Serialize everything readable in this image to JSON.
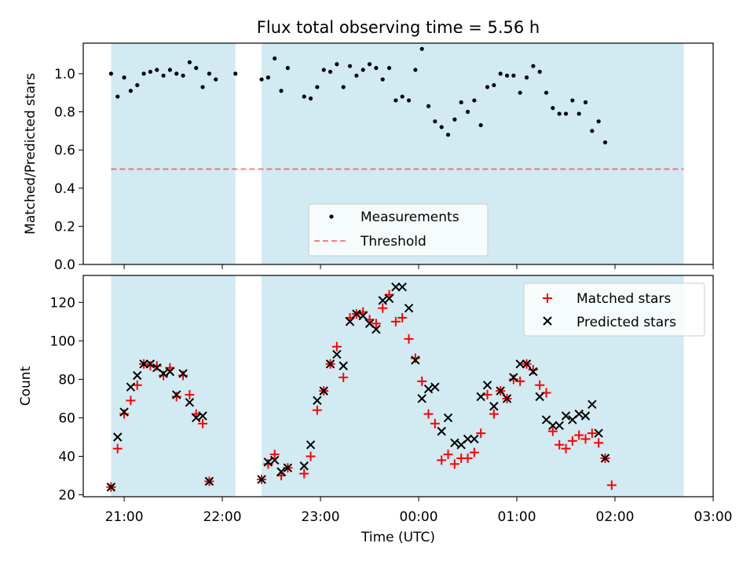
{
  "title": "Flux total observing time = 5.56 h",
  "colors": {
    "shade": "#add8e6",
    "threshold": "#ff0000",
    "matched": "#ff0000",
    "predicted": "#000000",
    "measure": "#000000"
  },
  "chart_data": [
    {
      "type": "scatter",
      "ylabel": "Matched/Predicted stars",
      "ylim": [
        0,
        1.16
      ],
      "yticks": [
        0.0,
        0.2,
        0.4,
        0.6,
        0.8,
        1.0
      ],
      "ytick_labels": [
        "0.0",
        "0.2",
        "0.4",
        "0.6",
        "0.8",
        "1.0"
      ],
      "xlim": [
        "20:35",
        "03:00"
      ],
      "shaded_spans": [
        [
          "20:52",
          "22:08"
        ],
        [
          "22:24",
          "02:42"
        ]
      ],
      "threshold": 0.5,
      "legend": {
        "position": "lower center",
        "entries": [
          "Measurements",
          "Threshold"
        ]
      },
      "series": [
        {
          "name": "Measurements",
          "points": [
            [
              "20:52",
              1.0
            ],
            [
              "20:56",
              0.88
            ],
            [
              "21:00",
              0.98
            ],
            [
              "21:04",
              0.91
            ],
            [
              "21:08",
              0.94
            ],
            [
              "21:12",
              1.0
            ],
            [
              "21:16",
              1.01
            ],
            [
              "21:20",
              1.02
            ],
            [
              "21:24",
              0.99
            ],
            [
              "21:28",
              1.02
            ],
            [
              "21:32",
              1.0
            ],
            [
              "21:36",
              0.99
            ],
            [
              "21:40",
              1.06
            ],
            [
              "21:44",
              1.03
            ],
            [
              "21:48",
              0.93
            ],
            [
              "21:52",
              1.0
            ],
            [
              "21:56",
              0.97
            ],
            [
              "22:08",
              1.0
            ],
            [
              "22:24",
              0.97
            ],
            [
              "22:28",
              0.98
            ],
            [
              "22:32",
              1.08
            ],
            [
              "22:36",
              0.91
            ],
            [
              "22:40",
              1.03
            ],
            [
              "22:50",
              0.88
            ],
            [
              "22:54",
              0.87
            ],
            [
              "22:58",
              0.93
            ],
            [
              "23:02",
              1.02
            ],
            [
              "23:06",
              1.01
            ],
            [
              "23:10",
              1.05
            ],
            [
              "23:14",
              0.93
            ],
            [
              "23:18",
              1.04
            ],
            [
              "23:22",
              0.99
            ],
            [
              "23:26",
              1.02
            ],
            [
              "23:30",
              1.05
            ],
            [
              "23:34",
              1.03
            ],
            [
              "23:38",
              0.97
            ],
            [
              "23:42",
              1.03
            ],
            [
              "23:46",
              0.86
            ],
            [
              "23:50",
              0.88
            ],
            [
              "23:54",
              0.86
            ],
            [
              "23:58",
              1.02
            ],
            [
              "00:02",
              1.13
            ],
            [
              "00:06",
              0.83
            ],
            [
              "00:10",
              0.75
            ],
            [
              "00:14",
              0.72
            ],
            [
              "00:18",
              0.68
            ],
            [
              "00:22",
              0.76
            ],
            [
              "00:26",
              0.85
            ],
            [
              "00:30",
              0.8
            ],
            [
              "00:34",
              0.86
            ],
            [
              "00:38",
              0.73
            ],
            [
              "00:42",
              0.93
            ],
            [
              "00:46",
              0.94
            ],
            [
              "00:50",
              1.0
            ],
            [
              "00:54",
              0.99
            ],
            [
              "00:58",
              0.99
            ],
            [
              "01:02",
              0.9
            ],
            [
              "01:06",
              0.98
            ],
            [
              "01:10",
              1.04
            ],
            [
              "01:14",
              1.01
            ],
            [
              "01:18",
              0.9
            ],
            [
              "01:22",
              0.82
            ],
            [
              "01:26",
              0.79
            ],
            [
              "01:30",
              0.79
            ],
            [
              "01:34",
              0.86
            ],
            [
              "01:38",
              0.79
            ],
            [
              "01:42",
              0.85
            ],
            [
              "01:46",
              0.7
            ],
            [
              "01:50",
              0.75
            ],
            [
              "01:54",
              0.64
            ]
          ]
        }
      ]
    },
    {
      "type": "scatter",
      "xlabel": "Time (UTC)",
      "ylabel": "Count",
      "ylim": [
        19,
        134
      ],
      "yticks": [
        20,
        40,
        60,
        80,
        100,
        120
      ],
      "ytick_labels": [
        "20",
        "40",
        "60",
        "80",
        "100",
        "120"
      ],
      "xlim": [
        "20:35",
        "03:00"
      ],
      "xtick_labels": [
        "21:00",
        "22:00",
        "23:00",
        "00:00",
        "01:00",
        "02:00",
        "03:00"
      ],
      "shaded_spans": [
        [
          "20:52",
          "22:08"
        ],
        [
          "22:24",
          "02:42"
        ]
      ],
      "legend": {
        "position": "top-right",
        "entries": [
          "Matched stars",
          "Predicted stars"
        ]
      },
      "series": [
        {
          "name": "Matched stars",
          "points": [
            [
              "20:52",
              24
            ],
            [
              "20:56",
              44
            ],
            [
              "21:00",
              62
            ],
            [
              "21:04",
              69
            ],
            [
              "21:08",
              77
            ],
            [
              "21:12",
              88
            ],
            [
              "21:16",
              87
            ],
            [
              "21:20",
              87
            ],
            [
              "21:24",
              82
            ],
            [
              "21:28",
              86
            ],
            [
              "21:32",
              71
            ],
            [
              "21:36",
              82
            ],
            [
              "21:40",
              72
            ],
            [
              "21:44",
              62
            ],
            [
              "21:48",
              57
            ],
            [
              "21:52",
              27
            ],
            [
              "22:24",
              28
            ],
            [
              "22:28",
              36
            ],
            [
              "22:32",
              41
            ],
            [
              "22:36",
              30
            ],
            [
              "22:40",
              34
            ],
            [
              "22:50",
              31
            ],
            [
              "22:54",
              40
            ],
            [
              "22:58",
              64
            ],
            [
              "23:02",
              74
            ],
            [
              "23:06",
              88
            ],
            [
              "23:10",
              97
            ],
            [
              "23:14",
              81
            ],
            [
              "23:18",
              112
            ],
            [
              "23:22",
              114
            ],
            [
              "23:26",
              115
            ],
            [
              "23:30",
              111
            ],
            [
              "23:34",
              109
            ],
            [
              "23:38",
              117
            ],
            [
              "23:42",
              124
            ],
            [
              "23:46",
              110
            ],
            [
              "23:50",
              112
            ],
            [
              "23:54",
              101
            ],
            [
              "23:58",
              91
            ],
            [
              "00:02",
              79
            ],
            [
              "00:06",
              62
            ],
            [
              "00:10",
              57
            ],
            [
              "00:14",
              38
            ],
            [
              "00:18",
              41
            ],
            [
              "00:22",
              36
            ],
            [
              "00:26",
              39
            ],
            [
              "00:30",
              39
            ],
            [
              "00:34",
              42
            ],
            [
              "00:38",
              52
            ],
            [
              "00:42",
              72
            ],
            [
              "00:46",
              62
            ],
            [
              "00:50",
              74
            ],
            [
              "00:54",
              70
            ],
            [
              "00:58",
              80
            ],
            [
              "01:02",
              79
            ],
            [
              "01:06",
              88
            ],
            [
              "01:10",
              85
            ],
            [
              "01:14",
              77
            ],
            [
              "01:18",
              73
            ],
            [
              "01:22",
              53
            ],
            [
              "01:26",
              46
            ],
            [
              "01:30",
              44
            ],
            [
              "01:34",
              48
            ],
            [
              "01:38",
              51
            ],
            [
              "01:42",
              49
            ],
            [
              "01:46",
              52
            ],
            [
              "01:50",
              47
            ],
            [
              "01:54",
              39
            ],
            [
              "01:58",
              25
            ]
          ]
        },
        {
          "name": "Predicted stars",
          "points": [
            [
              "20:52",
              24
            ],
            [
              "20:56",
              50
            ],
            [
              "21:00",
              63
            ],
            [
              "21:04",
              76
            ],
            [
              "21:08",
              82
            ],
            [
              "21:12",
              88
            ],
            [
              "21:16",
              88
            ],
            [
              "21:20",
              86
            ],
            [
              "21:24",
              83
            ],
            [
              "21:28",
              84
            ],
            [
              "21:32",
              72
            ],
            [
              "21:36",
              83
            ],
            [
              "21:40",
              68
            ],
            [
              "21:44",
              60
            ],
            [
              "21:48",
              61
            ],
            [
              "21:52",
              27
            ],
            [
              "22:24",
              28
            ],
            [
              "22:28",
              37
            ],
            [
              "22:32",
              38
            ],
            [
              "22:36",
              32
            ],
            [
              "22:40",
              34
            ],
            [
              "22:50",
              35
            ],
            [
              "22:54",
              46
            ],
            [
              "22:58",
              69
            ],
            [
              "23:02",
              74
            ],
            [
              "23:06",
              88
            ],
            [
              "23:10",
              93
            ],
            [
              "23:14",
              87
            ],
            [
              "23:18",
              110
            ],
            [
              "23:22",
              114
            ],
            [
              "23:26",
              113
            ],
            [
              "23:30",
              109
            ],
            [
              "23:34",
              106
            ],
            [
              "23:38",
              121
            ],
            [
              "23:42",
              122
            ],
            [
              "23:46",
              128
            ],
            [
              "23:50",
              128
            ],
            [
              "23:54",
              117
            ],
            [
              "23:58",
              90
            ],
            [
              "00:02",
              70
            ],
            [
              "00:06",
              75
            ],
            [
              "00:10",
              76
            ],
            [
              "00:14",
              53
            ],
            [
              "00:18",
              60
            ],
            [
              "00:22",
              47
            ],
            [
              "00:26",
              46
            ],
            [
              "00:30",
              49
            ],
            [
              "00:34",
              49
            ],
            [
              "00:38",
              71
            ],
            [
              "00:42",
              77
            ],
            [
              "00:46",
              66
            ],
            [
              "00:50",
              74
            ],
            [
              "00:54",
              70
            ],
            [
              "00:58",
              81
            ],
            [
              "01:02",
              88
            ],
            [
              "01:06",
              88
            ],
            [
              "01:10",
              84
            ],
            [
              "01:14",
              71
            ],
            [
              "01:18",
              59
            ],
            [
              "01:22",
              56
            ],
            [
              "01:26",
              56
            ],
            [
              "01:30",
              61
            ],
            [
              "01:34",
              59
            ],
            [
              "01:38",
              62
            ],
            [
              "01:42",
              61
            ],
            [
              "01:46",
              67
            ],
            [
              "01:50",
              52
            ],
            [
              "01:54",
              39
            ]
          ]
        }
      ]
    }
  ]
}
